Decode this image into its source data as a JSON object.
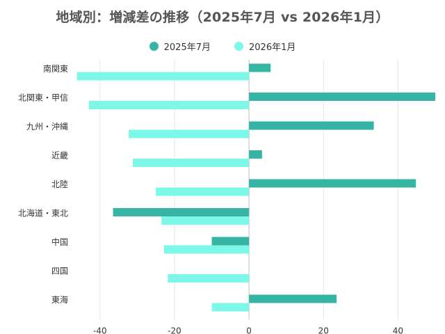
{
  "chart_data": {
    "type": "bar",
    "orientation": "horizontal",
    "title": "地域別：増減差の推移（2025年7月 vs 2026年1月）",
    "xlabel": "",
    "ylabel": "",
    "categories": [
      "南関東",
      "北関東・甲信",
      "九州・沖縄",
      "近畿",
      "北陸",
      "北海道・東北",
      "中国",
      "四国",
      "東海"
    ],
    "series": [
      {
        "name": "2025年7月",
        "color": "#36b5a5",
        "values": [
          5.8,
          50,
          33.5,
          3.5,
          44.8,
          -36.5,
          -10,
          0,
          23.5
        ]
      },
      {
        "name": "2026年1月",
        "color": "#7df7e8",
        "values": [
          -46.2,
          -43,
          -32.3,
          -31.2,
          -25,
          -23.5,
          -22.8,
          -21.8,
          -10
        ]
      }
    ],
    "xlim": [
      -46.5,
      50
    ],
    "xticks": [
      -40,
      -20,
      0,
      20,
      40
    ],
    "grid": "vertical",
    "legend_position": "top-center"
  }
}
